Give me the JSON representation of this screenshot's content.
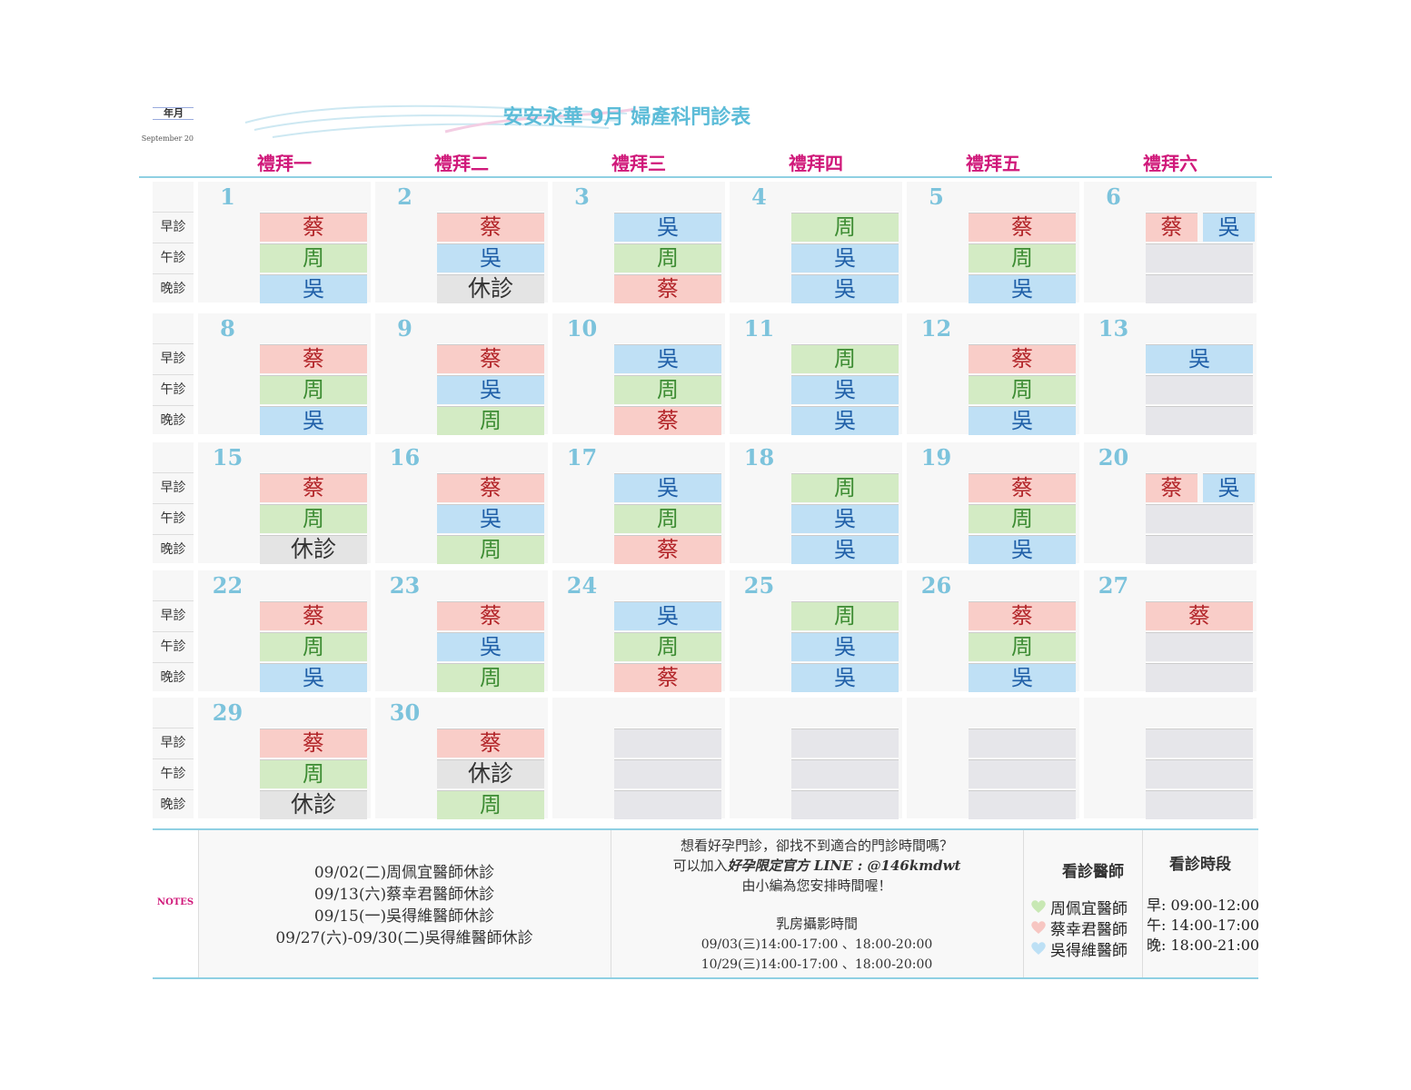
{
  "header": {
    "ym": "年月",
    "month_en": "September 20",
    "title": "安安永華 9月 婦產科門診表"
  },
  "weekdays": [
    "禮拜一",
    "禮拜二",
    "禮拜三",
    "禮拜四",
    "禮拜五",
    "禮拜六"
  ],
  "slot_labels": [
    "早診",
    "午診",
    "晚診"
  ],
  "cell_colors": {
    "蔡": [
      "#f9cdc8",
      "#b3262a"
    ],
    "周": [
      "#d3ebc4",
      "#3d8c33"
    ],
    "吳": [
      "#bfe0f5",
      "#1f5fa8"
    ],
    "休診": [
      "#e4e4e4",
      "#333333"
    ]
  },
  "weeks": [
    [
      {
        "date": 1,
        "slots": [
          "蔡",
          "周",
          "吳"
        ]
      },
      {
        "date": 2,
        "slots": [
          "蔡",
          "吳",
          "休診"
        ]
      },
      {
        "date": 3,
        "slots": [
          "吳",
          "周",
          "蔡"
        ]
      },
      {
        "date": 4,
        "slots": [
          "周",
          "吳",
          "吳"
        ]
      },
      {
        "date": 5,
        "slots": [
          "蔡",
          "周",
          "吳"
        ]
      },
      {
        "date": 6,
        "slots": [
          [
            "蔡",
            "吳"
          ],
          null,
          null
        ]
      }
    ],
    [
      {
        "date": 8,
        "slots": [
          "蔡",
          "周",
          "吳"
        ]
      },
      {
        "date": 9,
        "slots": [
          "蔡",
          "吳",
          "周"
        ]
      },
      {
        "date": 10,
        "slots": [
          "吳",
          "周",
          "蔡"
        ]
      },
      {
        "date": 11,
        "slots": [
          "周",
          "吳",
          "吳"
        ]
      },
      {
        "date": 12,
        "slots": [
          "蔡",
          "周",
          "吳"
        ]
      },
      {
        "date": 13,
        "slots": [
          "吳",
          null,
          null
        ]
      }
    ],
    [
      {
        "date": 15,
        "slots": [
          "蔡",
          "周",
          "休診"
        ]
      },
      {
        "date": 16,
        "slots": [
          "蔡",
          "吳",
          "周"
        ]
      },
      {
        "date": 17,
        "slots": [
          "吳",
          "周",
          "蔡"
        ]
      },
      {
        "date": 18,
        "slots": [
          "周",
          "吳",
          "吳"
        ]
      },
      {
        "date": 19,
        "slots": [
          "蔡",
          "周",
          "吳"
        ]
      },
      {
        "date": 20,
        "slots": [
          [
            "蔡",
            "吳"
          ],
          null,
          null
        ]
      }
    ],
    [
      {
        "date": 22,
        "slots": [
          "蔡",
          "周",
          "吳"
        ]
      },
      {
        "date": 23,
        "slots": [
          "蔡",
          "吳",
          "周"
        ]
      },
      {
        "date": 24,
        "slots": [
          "吳",
          "周",
          "蔡"
        ]
      },
      {
        "date": 25,
        "slots": [
          "周",
          "吳",
          "吳"
        ]
      },
      {
        "date": 26,
        "slots": [
          "蔡",
          "周",
          "吳"
        ]
      },
      {
        "date": 27,
        "slots": [
          "蔡",
          null,
          null
        ]
      }
    ],
    [
      {
        "date": 29,
        "slots": [
          "蔡",
          "周",
          "休診"
        ]
      },
      {
        "date": 30,
        "slots": [
          "蔡",
          "休診",
          "周"
        ]
      },
      {
        "date": null,
        "slots": [
          null,
          null,
          null
        ]
      },
      {
        "date": null,
        "slots": [
          null,
          null,
          null
        ]
      },
      {
        "date": null,
        "slots": [
          null,
          null,
          null
        ]
      },
      {
        "date": null,
        "slots": [
          null,
          null,
          null
        ]
      }
    ]
  ],
  "notes": {
    "label": "NOTES",
    "closures": [
      "09/02(二)周佩宜醫師休診",
      "09/13(六)蔡幸君醫師休診",
      "09/15(一)吳得維醫師休診",
      "09/27(六)-09/30(二)吳得維醫師休診"
    ],
    "info": {
      "line1": "想看好孕門診，卻找不到適合的門診時間嗎？",
      "line2_plain": "可以加入",
      "line2_bold": "好孕限定官方 LINE : @146kmdwt",
      "line3": "由小編為您安排時間喔！",
      "mammo_title": "乳房攝影時間",
      "mammo_times": [
        "09/03(三)14:00-17:00 、18:00-20:00",
        "10/29(三)14:00-17:00 、18:00-20:00"
      ]
    },
    "doctors_title": "看診醫師",
    "doctors": [
      {
        "name": "周佩宜醫師",
        "color": "#c8e8b4"
      },
      {
        "name": "蔡幸君醫師",
        "color": "#f7c6c2"
      },
      {
        "name": "吳得維醫師",
        "color": "#bde0f5"
      }
    ],
    "hours_title": "看診時段",
    "hours": [
      "早: 09:00-12:00",
      "午: 14:00-17:00",
      "晚: 18:00-21:00"
    ]
  }
}
